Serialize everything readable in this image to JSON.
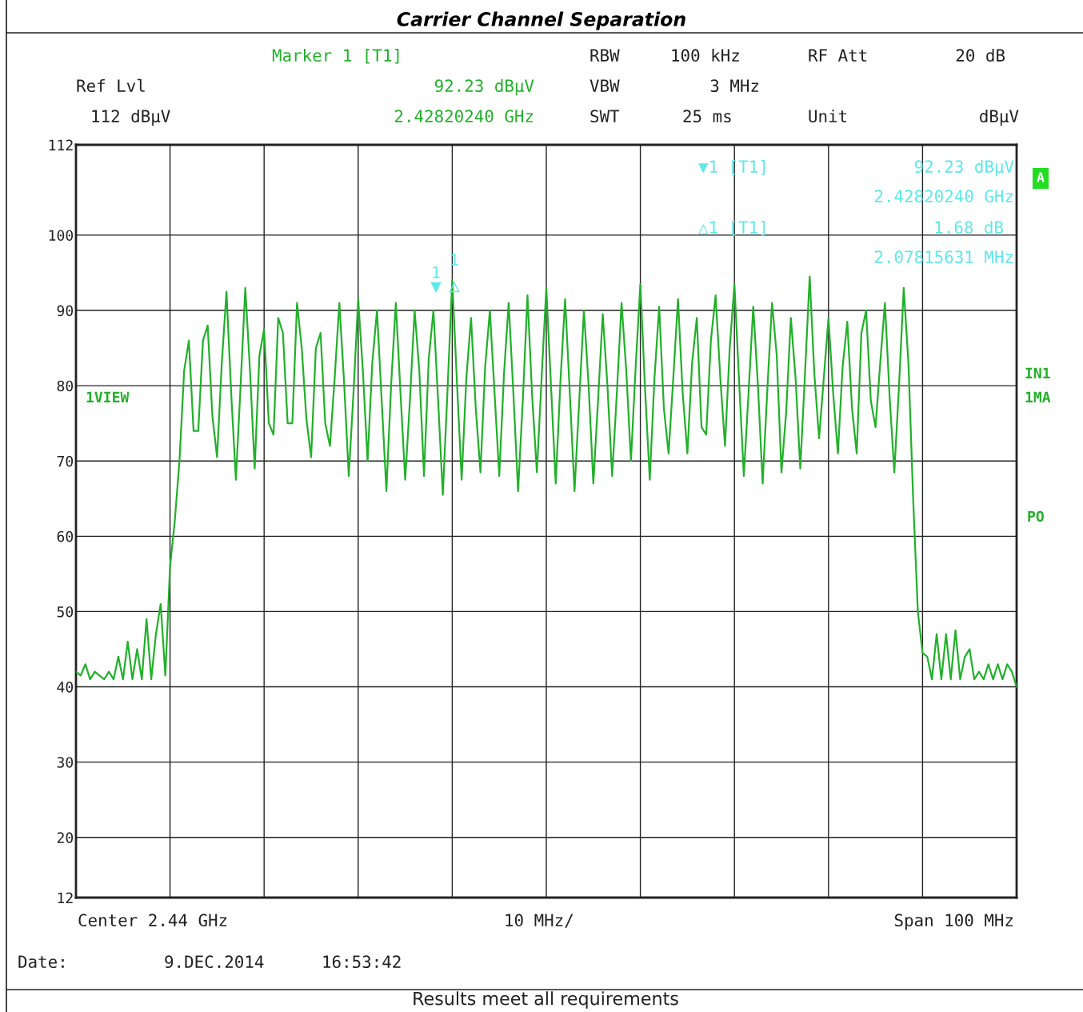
{
  "chart_data": {
    "type": "line",
    "title": "Carrier Channel Separation",
    "categories": [
      null,
      null,
      null,
      null,
      null,
      null,
      null,
      null,
      null,
      null,
      null,
      null,
      null,
      null,
      null,
      null,
      null,
      null,
      null,
      null,
      null,
      null,
      null,
      null,
      null,
      null,
      null,
      null,
      null,
      null,
      null,
      null,
      null,
      null,
      null,
      null,
      null,
      null,
      null,
      null,
      null,
      null,
      null,
      null,
      null,
      null,
      null,
      null,
      null,
      null,
      null,
      null,
      null,
      null,
      null,
      null,
      null,
      null,
      null,
      null,
      null,
      null,
      null,
      null,
      null,
      null,
      null,
      null,
      null,
      null,
      null,
      null,
      null,
      null,
      null,
      null,
      null,
      null,
      null,
      null,
      null,
      null,
      null,
      null,
      null,
      null,
      null,
      null,
      null,
      null,
      null,
      null,
      null,
      null,
      null,
      null,
      null,
      null,
      null,
      null,
      null,
      null,
      null,
      null,
      null,
      null,
      null,
      null,
      null,
      null,
      null,
      null,
      null,
      null,
      null,
      null,
      null,
      null,
      null,
      null,
      null,
      null,
      null,
      null,
      null,
      null,
      null,
      null,
      null,
      null,
      null,
      null,
      null,
      null,
      null,
      null,
      null,
      null,
      null,
      null,
      null,
      null,
      null,
      null,
      null,
      null,
      null,
      null,
      null,
      null,
      null,
      null,
      null,
      null,
      null,
      null,
      null,
      null,
      null,
      null,
      null,
      null,
      null,
      null,
      null,
      null,
      null,
      null,
      null,
      null,
      null,
      null,
      null,
      null,
      null,
      null,
      null,
      null,
      null,
      null,
      null,
      null,
      null,
      null,
      null,
      null,
      null,
      null,
      null,
      null,
      null,
      null,
      null,
      null,
      null,
      null,
      null,
      null,
      null,
      null,
      null
    ],
    "series": [
      {
        "color": "#22b02a",
        "values": [
          42,
          41.5,
          43,
          41,
          42,
          41.5,
          41,
          42,
          41,
          44,
          41,
          46,
          41,
          45,
          41,
          49,
          41,
          47,
          51,
          41.5,
          56,
          62,
          70,
          82,
          86,
          74,
          74,
          86,
          88,
          76,
          70.5,
          83,
          92.5,
          79,
          67.5,
          80,
          93,
          82,
          69,
          84,
          87.5,
          75,
          73.5,
          89,
          87,
          75,
          75,
          91,
          85,
          75.5,
          70.5,
          85,
          87,
          75,
          72,
          81,
          91,
          80.5,
          68,
          79,
          91.5,
          82,
          70,
          83,
          90,
          78,
          66,
          80,
          91,
          79,
          67.5,
          78,
          90,
          82,
          68,
          83.5,
          90,
          78,
          65.5,
          79.5,
          94,
          80.5,
          67.5,
          81,
          89,
          77,
          68.5,
          82.5,
          90,
          79,
          68,
          81.5,
          91,
          79,
          66,
          78,
          92,
          78.5,
          68.5,
          81,
          93,
          80,
          67,
          80.5,
          91.5,
          79,
          66,
          78,
          90,
          80,
          67,
          78,
          89.5,
          80,
          68,
          79,
          91,
          82,
          70,
          82.5,
          93.5,
          79.5,
          67.5,
          81,
          90.5,
          77,
          71,
          81,
          91.5,
          79,
          71,
          83,
          89,
          74.5,
          73.5,
          86,
          92,
          81,
          72,
          85,
          93.5,
          80.5,
          68,
          79,
          90.5,
          80,
          67,
          79.5,
          91,
          84,
          68.5,
          76.5,
          89,
          81,
          69,
          81.5,
          94.5,
          81.5,
          73,
          81,
          89,
          79,
          71,
          82.5,
          88.5,
          77,
          71,
          87,
          90,
          78,
          74.5,
          83,
          91,
          78.5,
          68.5,
          80,
          93,
          83,
          65,
          50,
          44.5,
          44,
          41,
          47,
          41,
          47,
          41,
          47.5,
          41,
          44,
          45,
          41,
          42,
          41,
          43,
          41,
          43,
          41,
          43,
          42,
          40
        ]
      }
    ],
    "ylim": [
      12,
      112
    ],
    "yticks": [
      12,
      20,
      30,
      40,
      50,
      60,
      70,
      80,
      90,
      100,
      112
    ],
    "tick_labels": "y",
    "grid": true,
    "marker": "none",
    "line_style": "solid",
    "annotations": [
      "Marker 1 [T1]",
      "92.23 dBµV",
      "2.42820240 GHz",
      "Ref Lvl",
      "112 dBµV",
      "RBW",
      "100 kHz",
      "RF Att",
      "20 dB",
      "VBW",
      "3 MHz",
      "SWT",
      "25 ms",
      "Unit",
      "dBµV",
      "▼1 [T1]",
      "92.23 dBµV",
      "2.42820240 GHz",
      "△1 [T1]",
      "1.68 dB",
      "2.07815631 MHz",
      "A",
      "1VIEW",
      "IN1",
      "1MA",
      "PO",
      "Center 2.44 GHz",
      "10 MHz/",
      "Span 100 MHz",
      "Date:",
      "9.DEC.2014",
      "16:53:42",
      "Results meet all requirements",
      "1",
      "1"
    ]
  }
}
